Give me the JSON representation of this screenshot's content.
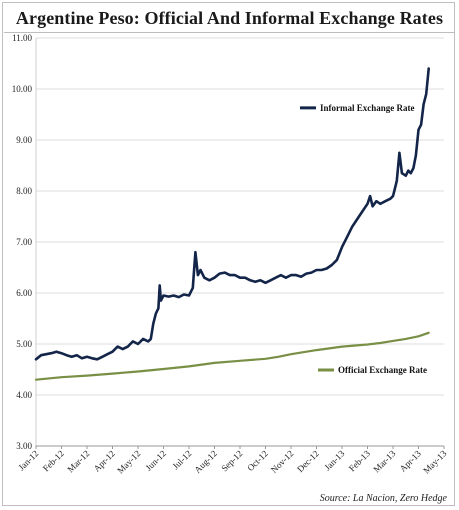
{
  "chart_data": {
    "type": "line",
    "title": "Argentine Peso: Official And Informal Exchange Rates",
    "source": "Source: La Nacion, Zero Hedge",
    "xlabel": "",
    "ylabel": "",
    "ylim": [
      3.0,
      11.0
    ],
    "yticks": [
      "3.00",
      "4.00",
      "5.00",
      "6.00",
      "7.00",
      "8.00",
      "9.00",
      "10.00",
      "11.00"
    ],
    "categories": [
      "Jan-12",
      "Feb-12",
      "Mar-12",
      "Apr-12",
      "May-12",
      "Jun-12",
      "Jul-12",
      "Aug-12",
      "Sep-12",
      "Oct-12",
      "Nov-12",
      "Dec-12",
      "Jan-13",
      "Feb-13",
      "Mar-13",
      "Apr-13",
      "May-13"
    ],
    "legend_placement": "inside",
    "grid": true,
    "series": [
      {
        "name": "Informal Exchange Rate",
        "color": "#14254a",
        "points": [
          [
            0.0,
            4.7
          ],
          [
            0.2,
            4.78
          ],
          [
            0.4,
            4.8
          ],
          [
            0.6,
            4.82
          ],
          [
            0.8,
            4.85
          ],
          [
            1.0,
            4.82
          ],
          [
            1.2,
            4.78
          ],
          [
            1.4,
            4.75
          ],
          [
            1.6,
            4.78
          ],
          [
            1.8,
            4.72
          ],
          [
            2.0,
            4.75
          ],
          [
            2.2,
            4.72
          ],
          [
            2.4,
            4.7
          ],
          [
            2.6,
            4.75
          ],
          [
            2.8,
            4.8
          ],
          [
            3.0,
            4.85
          ],
          [
            3.2,
            4.95
          ],
          [
            3.4,
            4.9
          ],
          [
            3.6,
            4.95
          ],
          [
            3.8,
            5.05
          ],
          [
            4.0,
            5.0
          ],
          [
            4.2,
            5.1
          ],
          [
            4.4,
            5.05
          ],
          [
            4.5,
            5.1
          ],
          [
            4.6,
            5.4
          ],
          [
            4.7,
            5.6
          ],
          [
            4.8,
            5.7
          ],
          [
            4.85,
            6.15
          ],
          [
            4.9,
            5.85
          ],
          [
            5.0,
            5.95
          ],
          [
            5.2,
            5.93
          ],
          [
            5.4,
            5.95
          ],
          [
            5.6,
            5.92
          ],
          [
            5.8,
            5.97
          ],
          [
            6.0,
            5.95
          ],
          [
            6.15,
            6.1
          ],
          [
            6.25,
            6.8
          ],
          [
            6.35,
            6.35
          ],
          [
            6.45,
            6.45
          ],
          [
            6.6,
            6.3
          ],
          [
            6.8,
            6.25
          ],
          [
            7.0,
            6.3
          ],
          [
            7.2,
            6.38
          ],
          [
            7.4,
            6.4
          ],
          [
            7.6,
            6.35
          ],
          [
            7.8,
            6.35
          ],
          [
            8.0,
            6.3
          ],
          [
            8.2,
            6.3
          ],
          [
            8.4,
            6.25
          ],
          [
            8.6,
            6.22
          ],
          [
            8.8,
            6.25
          ],
          [
            9.0,
            6.2
          ],
          [
            9.2,
            6.25
          ],
          [
            9.4,
            6.3
          ],
          [
            9.6,
            6.35
          ],
          [
            9.8,
            6.3
          ],
          [
            10.0,
            6.35
          ],
          [
            10.2,
            6.35
          ],
          [
            10.4,
            6.32
          ],
          [
            10.6,
            6.38
          ],
          [
            10.8,
            6.4
          ],
          [
            11.0,
            6.45
          ],
          [
            11.2,
            6.45
          ],
          [
            11.4,
            6.48
          ],
          [
            11.6,
            6.55
          ],
          [
            11.8,
            6.65
          ],
          [
            12.0,
            6.9
          ],
          [
            12.2,
            7.1
          ],
          [
            12.4,
            7.3
          ],
          [
            12.6,
            7.45
          ],
          [
            12.8,
            7.6
          ],
          [
            13.0,
            7.75
          ],
          [
            13.1,
            7.9
          ],
          [
            13.2,
            7.7
          ],
          [
            13.35,
            7.8
          ],
          [
            13.5,
            7.75
          ],
          [
            13.7,
            7.8
          ],
          [
            13.9,
            7.85
          ],
          [
            14.0,
            7.9
          ],
          [
            14.05,
            8.0
          ],
          [
            14.15,
            8.2
          ],
          [
            14.25,
            8.75
          ],
          [
            14.35,
            8.35
          ],
          [
            14.5,
            8.3
          ],
          [
            14.6,
            8.4
          ],
          [
            14.7,
            8.35
          ],
          [
            14.8,
            8.45
          ],
          [
            14.9,
            8.7
          ],
          [
            15.0,
            9.2
          ],
          [
            15.1,
            9.3
          ],
          [
            15.2,
            9.7
          ],
          [
            15.3,
            9.9
          ],
          [
            15.4,
            10.4
          ]
        ]
      },
      {
        "name": "Official Exchange Rate",
        "color": "#7a8f46",
        "points": [
          [
            0.0,
            4.3
          ],
          [
            1.0,
            4.35
          ],
          [
            2.0,
            4.38
          ],
          [
            3.0,
            4.42
          ],
          [
            4.0,
            4.46
          ],
          [
            5.0,
            4.51
          ],
          [
            6.0,
            4.56
          ],
          [
            7.0,
            4.63
          ],
          [
            8.0,
            4.67
          ],
          [
            9.0,
            4.71
          ],
          [
            9.5,
            4.75
          ],
          [
            10.0,
            4.8
          ],
          [
            11.0,
            4.88
          ],
          [
            12.0,
            4.95
          ],
          [
            13.0,
            4.99
          ],
          [
            13.5,
            5.02
          ],
          [
            14.0,
            5.06
          ],
          [
            14.5,
            5.1
          ],
          [
            15.0,
            5.15
          ],
          [
            15.4,
            5.22
          ]
        ]
      }
    ]
  }
}
